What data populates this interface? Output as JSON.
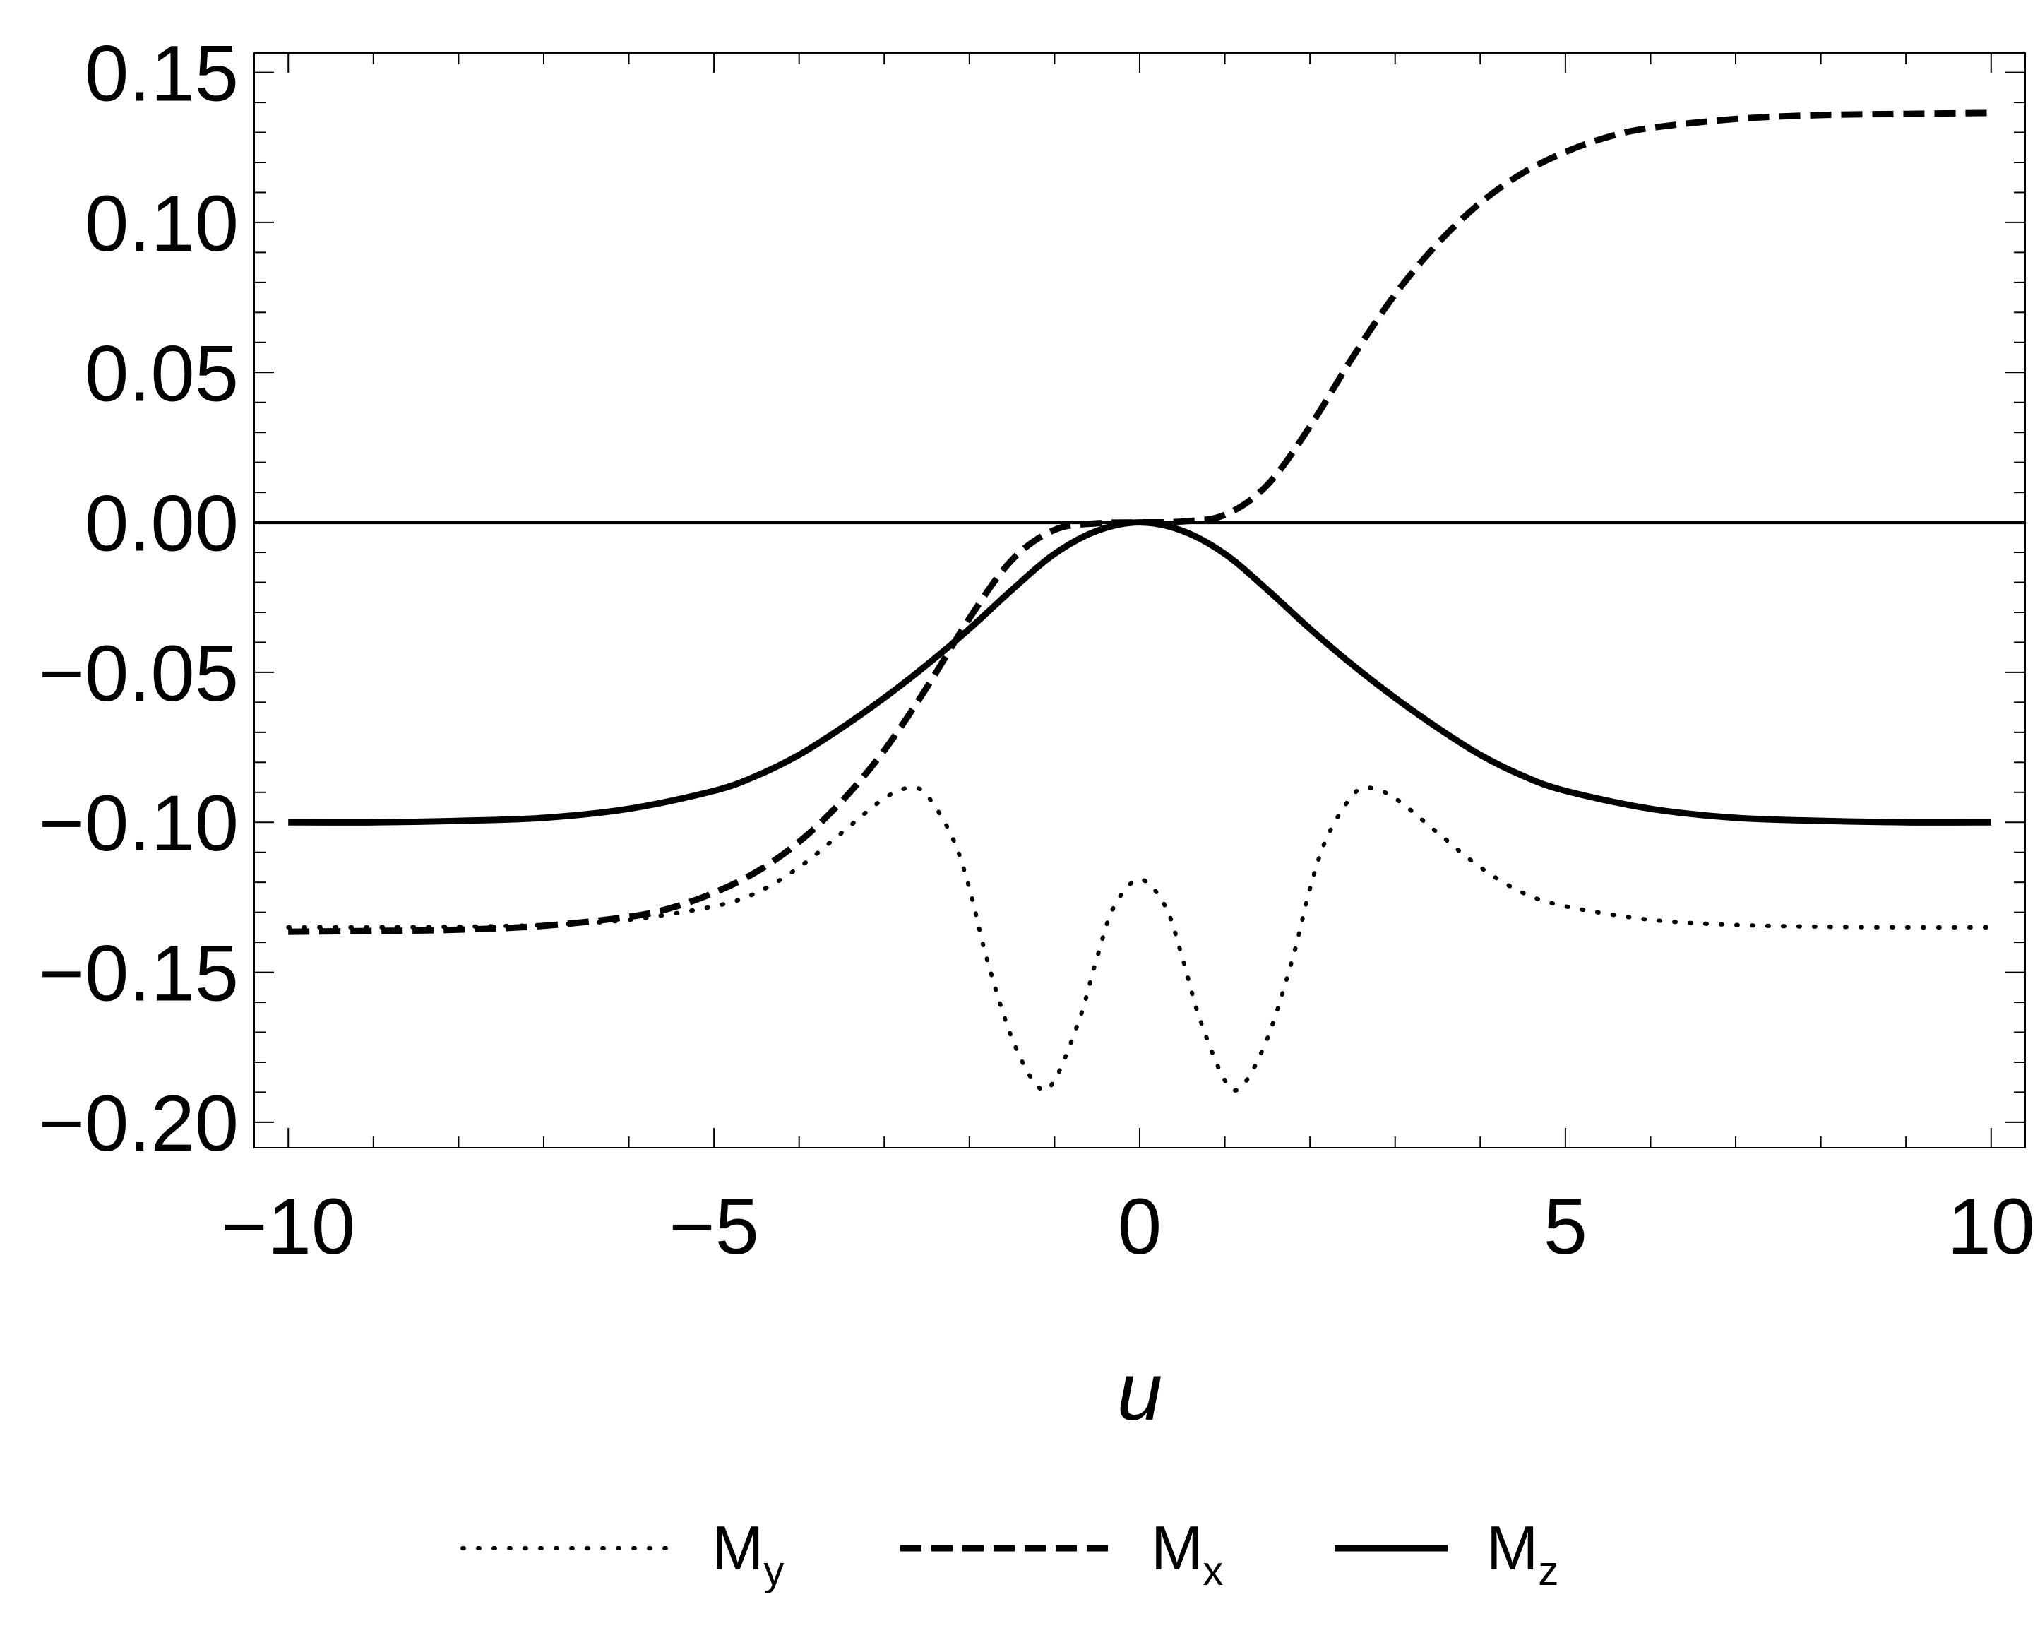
{
  "chart_data": {
    "type": "line",
    "xlabel": "u",
    "ylabel": "",
    "xlim": [
      -10.4,
      10.4
    ],
    "ylim": [
      -0.2085,
      0.1565
    ],
    "x_ticks": [
      -10,
      -5,
      0,
      5,
      10
    ],
    "x_tick_labels": [
      "−10",
      "−5",
      "0",
      "5",
      "10"
    ],
    "y_ticks": [
      -0.2,
      -0.15,
      -0.1,
      -0.05,
      0.0,
      0.05,
      0.1,
      0.15
    ],
    "y_tick_labels": [
      "−0.20",
      "−0.15",
      "−0.10",
      "−0.05",
      "0.00",
      "0.05",
      "0.10",
      "0.15"
    ],
    "grid": false,
    "zero_line": true,
    "legend_position": "bottom-center",
    "series": [
      {
        "name": "My",
        "name_main": "M",
        "name_sub": "y",
        "style": "dotted",
        "x": [
          -10,
          -9,
          -8,
          -7,
          -6,
          -5,
          -4.5,
          -4,
          -3.5,
          -3,
          -2.7,
          -2.5,
          -2.2,
          -2,
          -1.8,
          -1.5,
          -1.2,
          -1,
          -0.7,
          -0.5,
          -0.3,
          0,
          0.3,
          0.5,
          0.7,
          1,
          1.2,
          1.5,
          1.8,
          2,
          2.2,
          2.5,
          2.7,
          3,
          3.5,
          4,
          4.5,
          5,
          6,
          7,
          8,
          9,
          10
        ],
        "y": [
          -0.135,
          -0.135,
          -0.1348,
          -0.1342,
          -0.1325,
          -0.128,
          -0.1235,
          -0.115,
          -0.1035,
          -0.092,
          -0.0885,
          -0.091,
          -0.105,
          -0.122,
          -0.145,
          -0.172,
          -0.188,
          -0.186,
          -0.165,
          -0.145,
          -0.128,
          -0.119,
          -0.128,
          -0.145,
          -0.165,
          -0.186,
          -0.188,
          -0.172,
          -0.145,
          -0.122,
          -0.105,
          -0.091,
          -0.0885,
          -0.092,
          -0.1035,
          -0.115,
          -0.1235,
          -0.128,
          -0.1325,
          -0.1342,
          -0.1348,
          -0.135,
          -0.135
        ]
      },
      {
        "name": "Mx",
        "name_main": "M",
        "name_sub": "x",
        "style": "dashed",
        "x": [
          -10,
          -9,
          -8,
          -7,
          -6,
          -5.5,
          -5,
          -4.5,
          -4,
          -3.5,
          -3,
          -2.5,
          -2,
          -1.5,
          -1,
          -0.5,
          0,
          0.5,
          1,
          1.5,
          2,
          2.5,
          3,
          3.5,
          4,
          4.5,
          5,
          5.5,
          6,
          7,
          8,
          9,
          10
        ],
        "y": [
          -0.1365,
          -0.1362,
          -0.1358,
          -0.1345,
          -0.1315,
          -0.1285,
          -0.1235,
          -0.1165,
          -0.1065,
          -0.093,
          -0.076,
          -0.055,
          -0.032,
          -0.0125,
          -0.0025,
          -0.0003,
          0.0,
          0.0003,
          0.0025,
          0.0125,
          0.032,
          0.055,
          0.076,
          0.093,
          0.1065,
          0.1165,
          0.1235,
          0.1285,
          0.1315,
          0.1345,
          0.1358,
          0.1362,
          0.1365
        ]
      },
      {
        "name": "Mz",
        "name_main": "M",
        "name_sub": "z",
        "style": "solid",
        "x": [
          -10,
          -9,
          -8,
          -7,
          -6,
          -5,
          -4.5,
          -4,
          -3.5,
          -3,
          -2.5,
          -2,
          -1.5,
          -1,
          -0.5,
          0,
          0.5,
          1,
          1.5,
          2,
          2.5,
          3,
          3.5,
          4,
          4.5,
          5,
          6,
          7,
          8,
          9,
          10
        ],
        "y": [
          -0.1,
          -0.1,
          -0.0995,
          -0.0985,
          -0.0955,
          -0.0895,
          -0.0845,
          -0.0775,
          -0.0685,
          -0.0585,
          -0.0475,
          -0.0355,
          -0.0225,
          -0.0105,
          -0.0028,
          0.0,
          -0.0028,
          -0.0105,
          -0.0225,
          -0.0355,
          -0.0475,
          -0.0585,
          -0.0685,
          -0.0775,
          -0.0845,
          -0.0895,
          -0.0955,
          -0.0985,
          -0.0995,
          -0.1,
          -0.1
        ]
      }
    ]
  }
}
